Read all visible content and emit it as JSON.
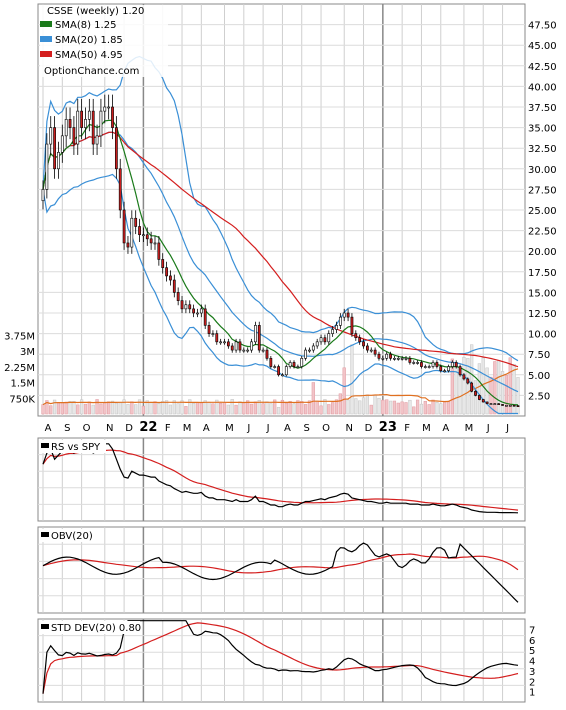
{
  "chart_data": [
    {
      "type": "candlestick",
      "title": "CSSE (weekly) 1.20",
      "website": "OptionChance.com",
      "legend": [
        {
          "name": "SMA(8) 1.25",
          "color": "#1a7a1a"
        },
        {
          "name": "SMA(20) 1.85",
          "color": "#3a8fd6"
        },
        {
          "name": "SMA(50) 4.95",
          "color": "#d41e1e"
        }
      ],
      "legend_position": "top-left",
      "ylim": [
        0,
        50
      ],
      "y_ticks": [
        "2.50",
        "5.00",
        "7.50",
        "10.00",
        "12.50",
        "15.00",
        "17.50",
        "20.00",
        "22.50",
        "25.00",
        "27.50",
        "30.00",
        "32.50",
        "35.00",
        "37.50",
        "40.00",
        "42.50",
        "45.00",
        "47.50"
      ],
      "x_tick_labels": [
        "A",
        "S",
        "O",
        "N",
        "D",
        "22",
        "F",
        "M",
        "A",
        "M",
        "J",
        "J",
        "A",
        "S",
        "O",
        "N",
        "D",
        "23",
        "F",
        "M",
        "A",
        "M",
        "J",
        "J"
      ],
      "grid": true,
      "close_series": [
        [
          0,
          27.5
        ],
        [
          1,
          33
        ],
        [
          2,
          35
        ],
        [
          3,
          30
        ],
        [
          4,
          32
        ],
        [
          5,
          34
        ],
        [
          6,
          36
        ],
        [
          7,
          35
        ],
        [
          8,
          33
        ],
        [
          9,
          37
        ],
        [
          10,
          35
        ],
        [
          11,
          36
        ],
        [
          12,
          37
        ],
        [
          13,
          33
        ],
        [
          14,
          34
        ],
        [
          15,
          37
        ],
        [
          16,
          37.5
        ],
        [
          17,
          37.5
        ],
        [
          18,
          35
        ],
        [
          19,
          30
        ],
        [
          20,
          25
        ],
        [
          21,
          21
        ],
        [
          22,
          20.5
        ],
        [
          23,
          24
        ],
        [
          24,
          23
        ],
        [
          25,
          22
        ],
        [
          26,
          22
        ],
        [
          27,
          21.5
        ],
        [
          28,
          21
        ],
        [
          29,
          21
        ],
        [
          30,
          19
        ],
        [
          31,
          18
        ],
        [
          32,
          17
        ],
        [
          33,
          16.5
        ],
        [
          34,
          15
        ],
        [
          35,
          14
        ],
        [
          36,
          13
        ],
        [
          37,
          13.5
        ],
        [
          38,
          13
        ],
        [
          39,
          12.5
        ],
        [
          40,
          12.5
        ],
        [
          41,
          13
        ],
        [
          42,
          11
        ],
        [
          43,
          10
        ],
        [
          44,
          10
        ],
        [
          45,
          9
        ],
        [
          46,
          9
        ],
        [
          47,
          9
        ],
        [
          48,
          8.5
        ],
        [
          49,
          8
        ],
        [
          50,
          9
        ],
        [
          51,
          8
        ],
        [
          52,
          8
        ],
        [
          53,
          8
        ],
        [
          54,
          9
        ],
        [
          55,
          11
        ],
        [
          56,
          8
        ],
        [
          57,
          8
        ],
        [
          58,
          7
        ],
        [
          59,
          6
        ],
        [
          60,
          6
        ],
        [
          61,
          5
        ],
        [
          62,
          5
        ],
        [
          63,
          6
        ],
        [
          64,
          6.5
        ],
        [
          65,
          6
        ],
        [
          66,
          6
        ],
        [
          67,
          7
        ],
        [
          68,
          8
        ],
        [
          69,
          8
        ],
        [
          70,
          8.5
        ],
        [
          71,
          9
        ],
        [
          72,
          9.5
        ],
        [
          73,
          9
        ],
        [
          74,
          10
        ],
        [
          75,
          10.5
        ],
        [
          76,
          11
        ],
        [
          77,
          12
        ],
        [
          78,
          12.5
        ],
        [
          79,
          12
        ],
        [
          80,
          10
        ],
        [
          81,
          9.5
        ],
        [
          82,
          9
        ],
        [
          83,
          8.5
        ],
        [
          84,
          8
        ],
        [
          85,
          8
        ],
        [
          86,
          7.5
        ],
        [
          87,
          7
        ],
        [
          88,
          7
        ],
        [
          89,
          7.5
        ],
        [
          90,
          7
        ],
        [
          91,
          7
        ],
        [
          92,
          7
        ],
        [
          93,
          7
        ],
        [
          94,
          7
        ],
        [
          95,
          6.5
        ],
        [
          96,
          6.5
        ],
        [
          97,
          6.5
        ],
        [
          98,
          6
        ],
        [
          99,
          6
        ],
        [
          100,
          6
        ],
        [
          101,
          6.5
        ],
        [
          102,
          6
        ],
        [
          103,
          5.5
        ],
        [
          104,
          5.5
        ],
        [
          105,
          6
        ],
        [
          106,
          6.5
        ],
        [
          107,
          6
        ],
        [
          108,
          5
        ],
        [
          109,
          4.5
        ],
        [
          110,
          4
        ],
        [
          111,
          3
        ],
        [
          112,
          2.5
        ],
        [
          113,
          2
        ],
        [
          114,
          1.7
        ],
        [
          115,
          1.5
        ],
        [
          116,
          1.5
        ],
        [
          117,
          1.5
        ],
        [
          118,
          1.4
        ],
        [
          119,
          1.3
        ],
        [
          120,
          1.3
        ],
        [
          121,
          1.3
        ],
        [
          122,
          1.25
        ],
        [
          123,
          1.2
        ]
      ]
    },
    {
      "type": "bar",
      "title": "",
      "y_ticks": [
        "750K",
        "1.5M",
        "2.25M",
        "3M",
        "3.75M"
      ],
      "ylim": [
        0,
        4000000
      ]
    },
    {
      "type": "line",
      "title": "RS vs SPY",
      "series": [
        {
          "name": "RS vs SPY",
          "color": "#000000"
        },
        {
          "name": "",
          "color": "#d41e1e"
        }
      ]
    },
    {
      "type": "line",
      "title": "OBV(20)",
      "series": [
        {
          "name": "OBV(20)",
          "color": "#000000"
        },
        {
          "name": "",
          "color": "#d41e1e"
        }
      ]
    },
    {
      "type": "line",
      "title": "STD DEV(20) 0.80",
      "y_ticks": [
        "1",
        "2",
        "3",
        "4",
        "5",
        "6",
        "7"
      ],
      "ylim": [
        0,
        8
      ],
      "series": [
        {
          "name": "STD DEV(20) 0.80",
          "color": "#000000"
        },
        {
          "name": "",
          "color": "#d41e1e"
        }
      ]
    }
  ]
}
